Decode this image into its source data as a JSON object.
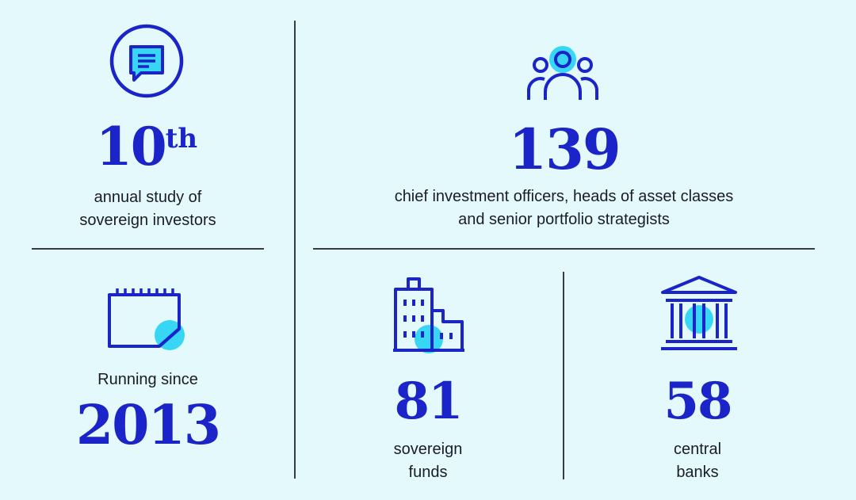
{
  "stats": {
    "study": {
      "number": "10",
      "suffix": "th",
      "line1": "annual study of",
      "line2": "sovereign investors",
      "icon": "chat-bubble-icon"
    },
    "running": {
      "label": "Running since",
      "year": "2013",
      "icon": "calendar-icon"
    },
    "respondents": {
      "number": "139",
      "line1": "chief investment officers, heads of asset classes",
      "line2": "and senior portfolio strategists",
      "icon": "people-icon"
    },
    "sovereign_funds": {
      "number": "81",
      "line1": "sovereign",
      "line2": "funds",
      "icon": "office-building-icon"
    },
    "central_banks": {
      "number": "58",
      "line1": "central",
      "line2": "banks",
      "icon": "bank-building-icon"
    }
  },
  "colors": {
    "background": "#e3f9fc",
    "accent": "#1a24c9",
    "highlight": "#37d6f5",
    "text": "#1b1b2a"
  }
}
